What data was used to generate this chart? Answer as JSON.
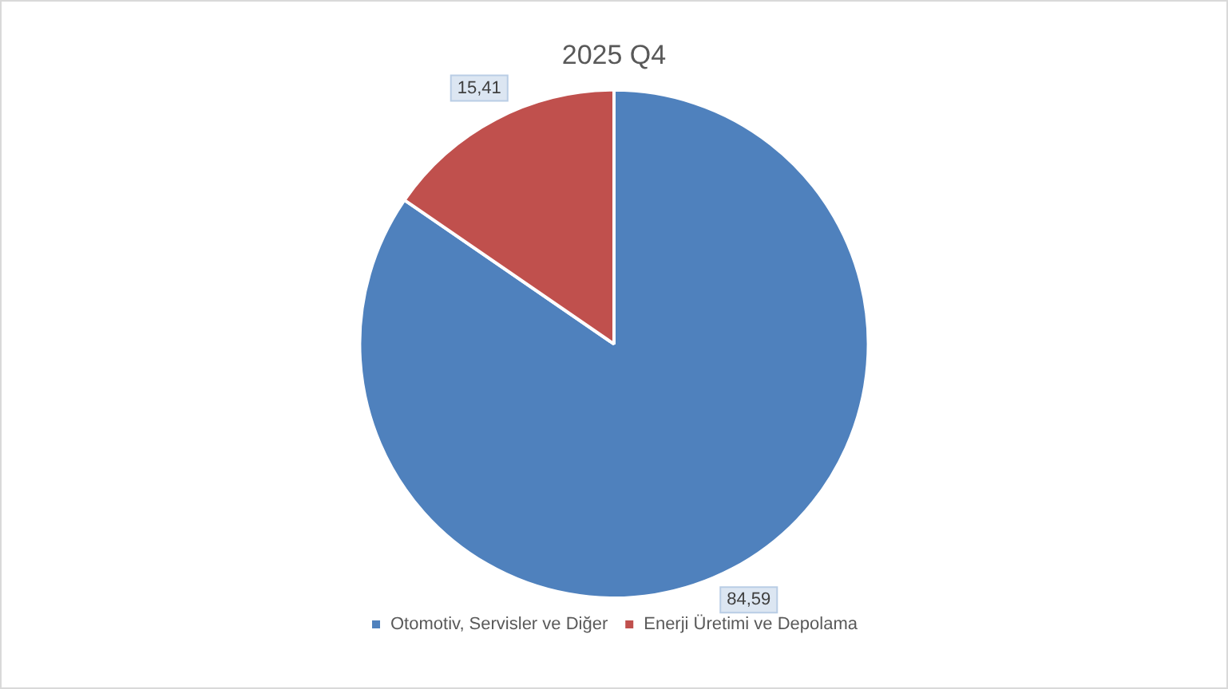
{
  "chart_data": {
    "type": "pie",
    "title": "2025 Q4",
    "categories": [
      "Otomotiv, Servisler ve Diğer",
      "Enerji Üretimi ve Depolama"
    ],
    "values": [
      84.59,
      15.41
    ],
    "colors": [
      "#4f81bd",
      "#c0504d"
    ],
    "value_labels": [
      "84,59",
      "15,41"
    ],
    "legend": "bottom"
  }
}
